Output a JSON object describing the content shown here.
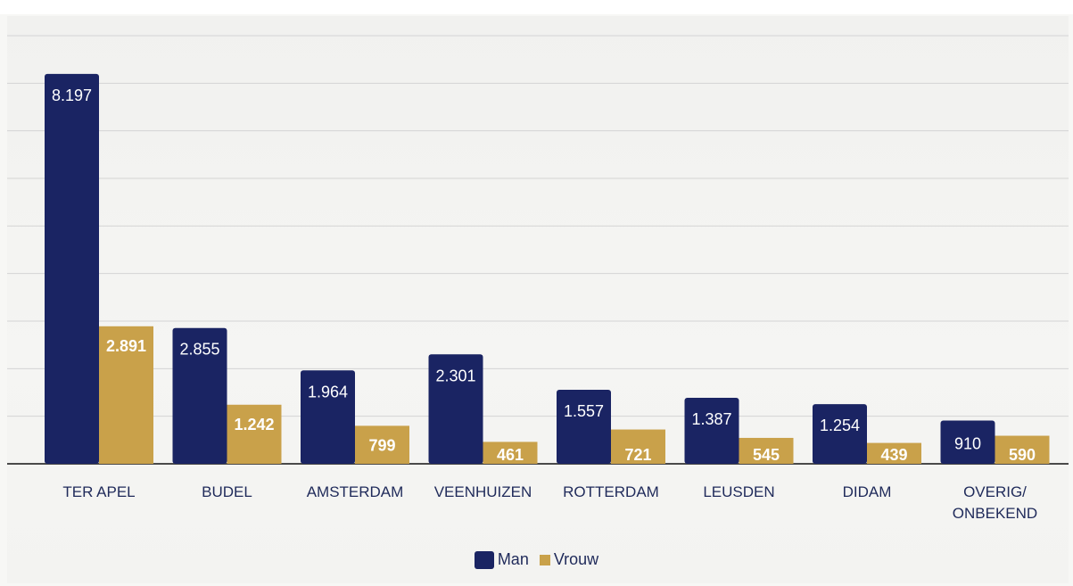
{
  "chart_data": {
    "type": "bar",
    "categories": [
      "TER APEL",
      "BUDEL",
      "AMSTERDAM",
      "VEENHUIZEN",
      "ROTTERDAM",
      "LEUSDEN",
      "DIDAM",
      "OVERIG/\nONBEKEND"
    ],
    "series": [
      {
        "name": "Man",
        "values": [
          8197,
          2855,
          1964,
          2301,
          1557,
          1387,
          1254,
          910
        ],
        "labels": [
          "8.197",
          "2.855",
          "1.964",
          "2.301",
          "1.557",
          "1.387",
          "1.254",
          "910"
        ],
        "color": "#1a2463"
      },
      {
        "name": "Vrouw",
        "values": [
          2891,
          1242,
          799,
          461,
          721,
          545,
          439,
          590
        ],
        "labels": [
          "2.891",
          "1.242",
          "799",
          "461",
          "721",
          "545",
          "439",
          "590"
        ],
        "color": "#c9a14a"
      }
    ],
    "ylim": [
      0,
      9000
    ],
    "grid": true,
    "legend_position": "bottom"
  }
}
